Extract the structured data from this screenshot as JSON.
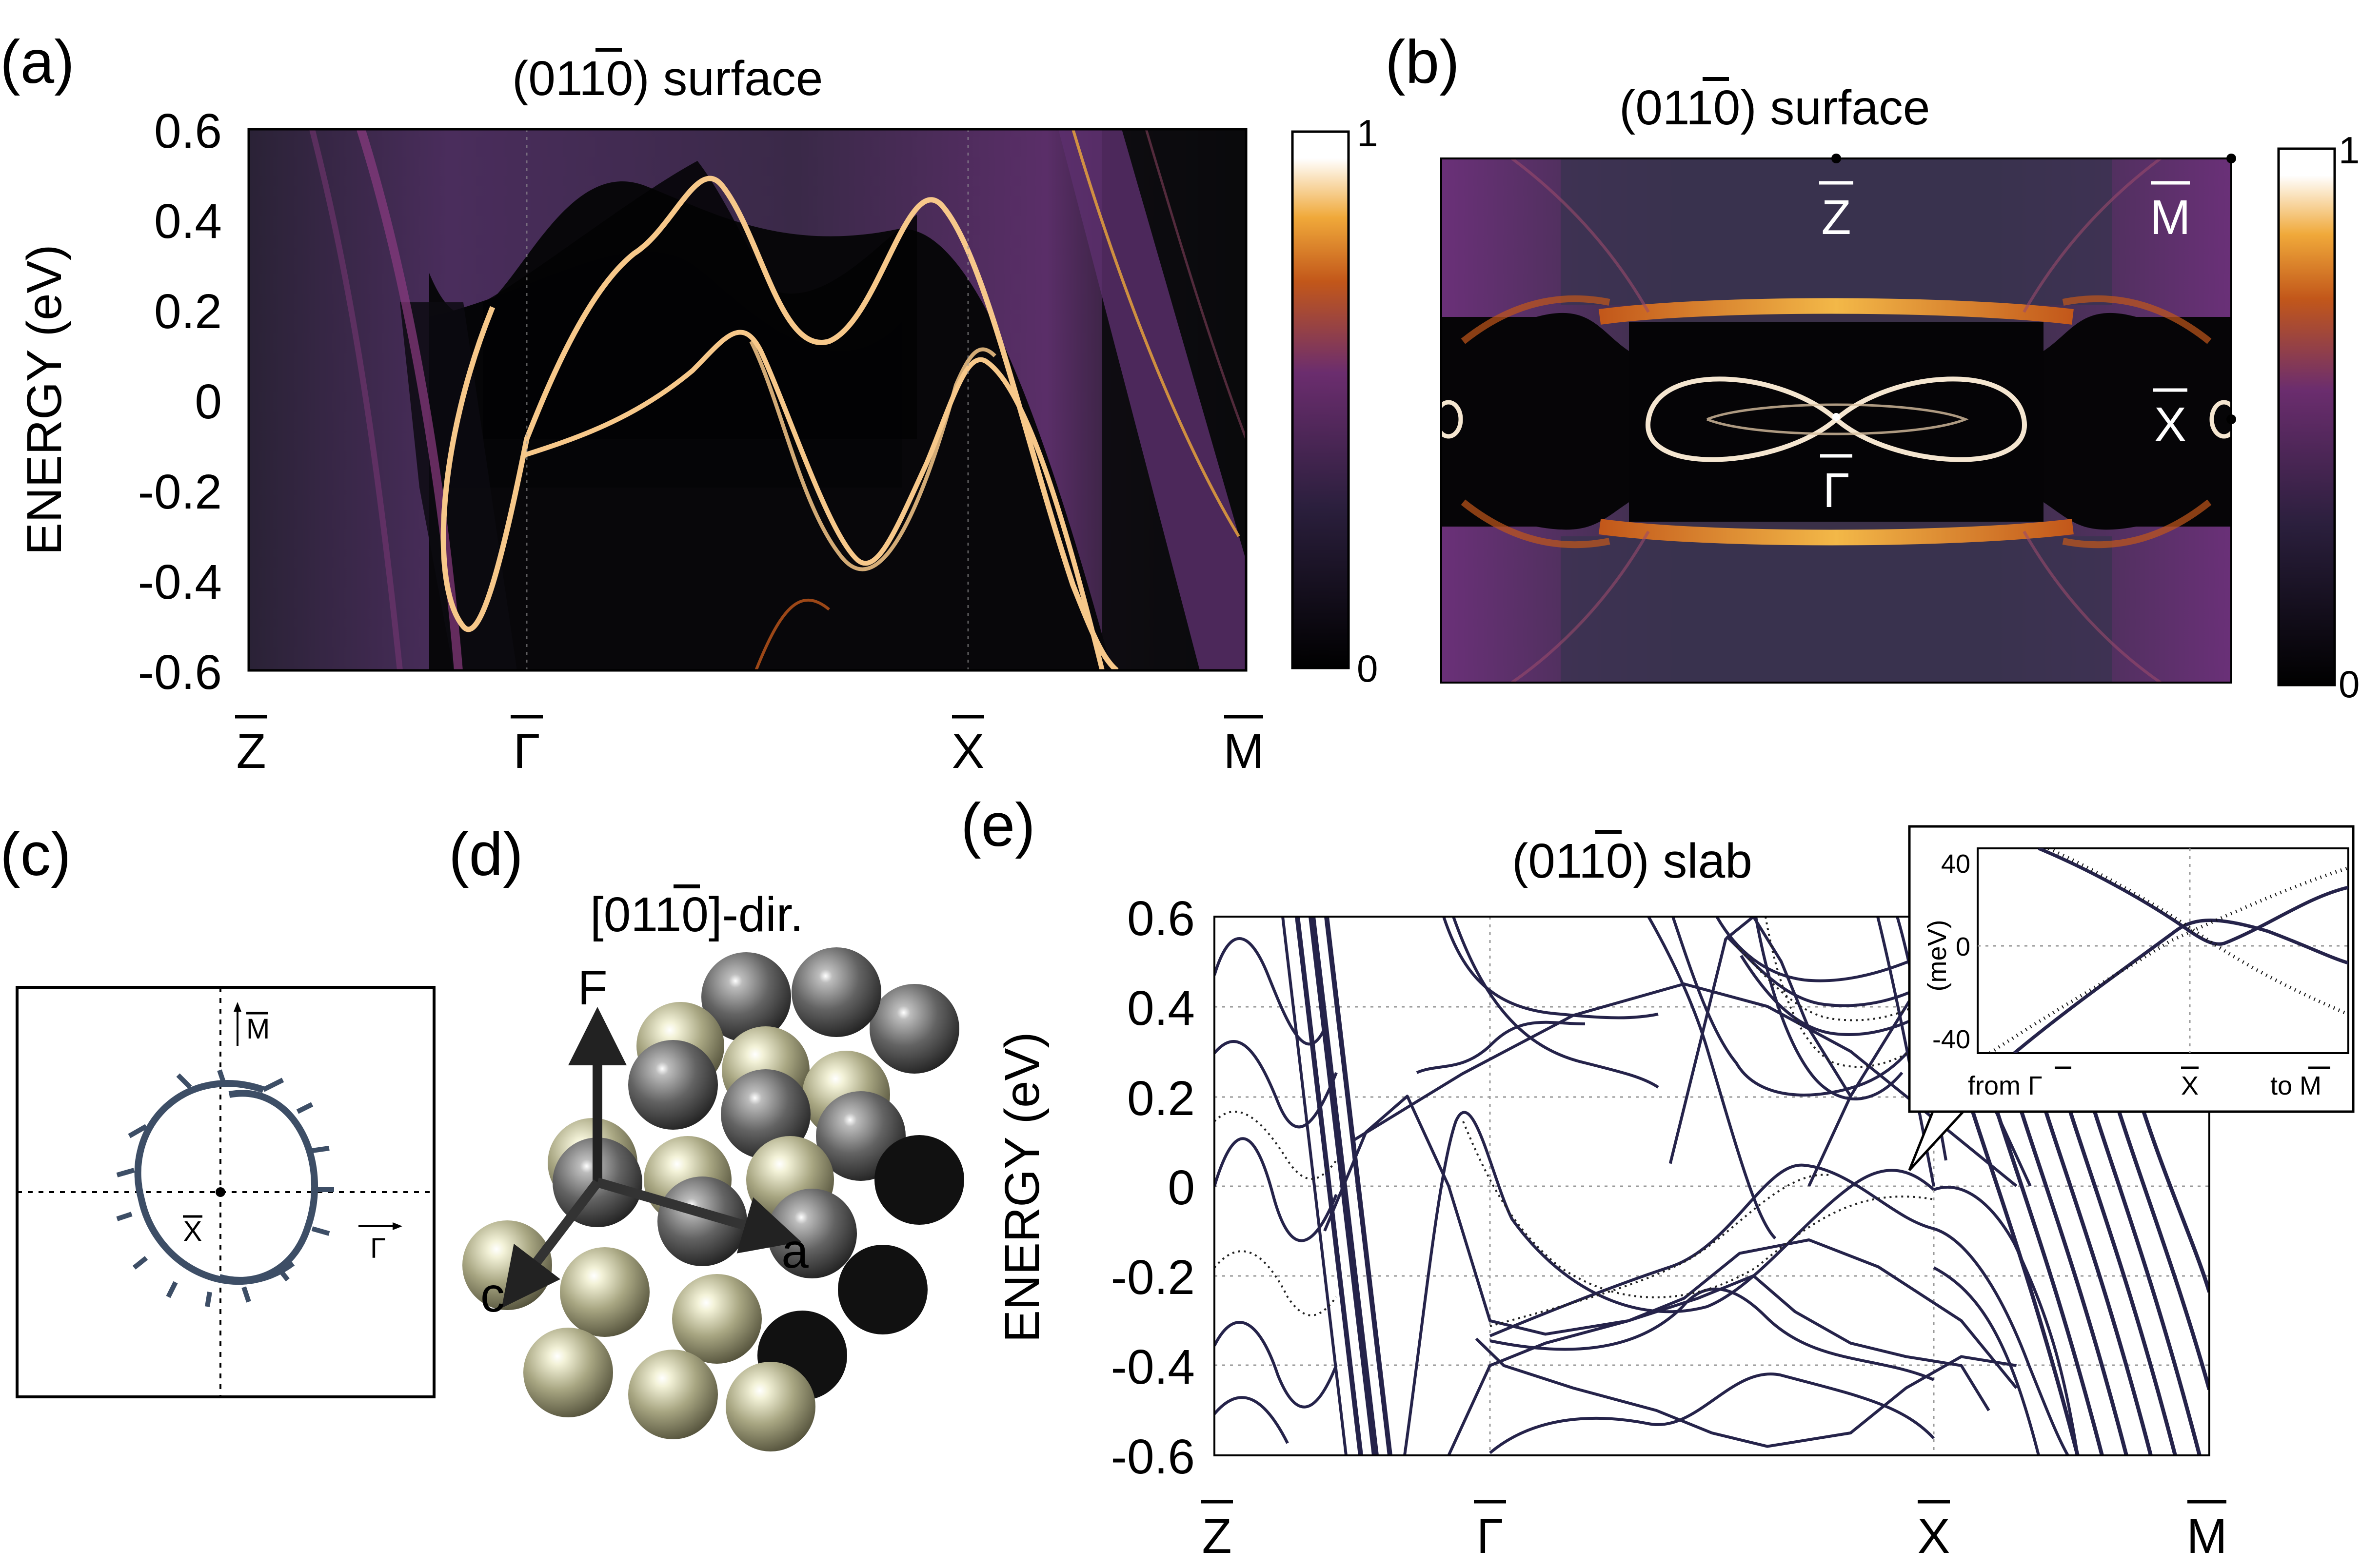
{
  "panels": {
    "a": {
      "letter": "(a)",
      "title_pre": "(01",
      "title_bar": "1",
      "title_post": "0) surface",
      "ylabel": "ENERGY (eV)",
      "yticks": [
        "0.6",
        "0.4",
        "0.2",
        "0",
        "-0.2",
        "-0.4",
        "-0.6"
      ],
      "kpoints": [
        "Z",
        "Γ",
        "X",
        "M"
      ],
      "colorbar": {
        "max": "1",
        "min": "0"
      }
    },
    "b": {
      "letter": "(b)",
      "title_pre": "(01",
      "title_bar": "1",
      "title_post": "0) surface",
      "kpoints": {
        "z": "Z",
        "m": "M",
        "x": "X",
        "g": "Γ"
      },
      "colorbar": {
        "max": "1",
        "min": "0"
      }
    },
    "c": {
      "letter": "(c)",
      "labels": {
        "m": "M",
        "x": "X",
        "g": "Γ"
      }
    },
    "d": {
      "letter": "(d)",
      "title_pre": "[01",
      "title_bar": "1",
      "title_post": "0]-dir.",
      "axes": {
        "f": "F",
        "a": "a",
        "c": "c"
      }
    },
    "e": {
      "letter": "(e)",
      "title_pre": "(01",
      "title_bar": "1",
      "title_post": "0) slab",
      "ylabel": "ENERGY (eV)",
      "yticks": [
        "0.6",
        "0.4",
        "0.2",
        "0",
        "-0.2",
        "-0.4",
        "-0.6"
      ],
      "kpoints": [
        "Z",
        "Γ",
        "X",
        "M"
      ],
      "inset": {
        "ylabel": "(meV)",
        "yticks": [
          "40",
          "0",
          "-40"
        ],
        "from": "from ",
        "from_pt": "Γ",
        "mid": "X",
        "to": "to ",
        "to_pt": "M"
      }
    }
  },
  "chart_data": [
    {
      "type": "heatmap",
      "panel": "a",
      "title": "(011̄0) surface",
      "ylabel": "ENERGY (eV)",
      "ylim": [
        -0.6,
        0.6
      ],
      "x_ticks": [
        "Z",
        "Γ",
        "X",
        "M"
      ],
      "colorbar": [
        0,
        1
      ],
      "colormap": [
        "#000000",
        "#2b1f3d",
        "#6b2d6e",
        "#c2571a",
        "#f0a93a",
        "#ffffff"
      ],
      "bands": [
        {
          "name": "",
          "x": [
            0.21,
            0.27,
            0.28,
            0.35,
            0.42,
            0.48,
            0.55,
            0.63,
            0.66,
            0.73,
            0.78,
            0.84
          ],
          "y": [
            0.2,
            -0.45,
            -0.45,
            -0.1,
            0.22,
            0.38,
            0.05,
            0.15,
            0.36,
            -0.2,
            -0.6,
            -0.6
          ]
        },
        {
          "name": "",
          "x": [
            0.28,
            0.31,
            0.38,
            0.46,
            0.52,
            0.58,
            0.62,
            0.66,
            0.7,
            0.76,
            0.82
          ],
          "y": [
            -0.12,
            -0.11,
            0.02,
            0.16,
            -0.07,
            -0.36,
            -0.34,
            -0.05,
            0.1,
            -0.35,
            -0.6
          ]
        },
        {
          "name": "",
          "x": [
            0.26,
            0.34,
            0.4,
            0.45,
            0.55,
            0.66,
            0.68,
            0.74
          ],
          "y": [
            -0.45,
            -0.27,
            0.02,
            0.12,
            -0.22,
            -0.38,
            -0.3,
            -0.05
          ]
        }
      ]
    },
    {
      "type": "heatmap",
      "panel": "b",
      "title": "(011̄0) surface",
      "colorbar": [
        0,
        1
      ],
      "colormap": [
        "#000000",
        "#2b1f3d",
        "#6b2d6e",
        "#c2571a",
        "#f0a93a",
        "#ffffff"
      ]
    },
    {
      "type": "line",
      "panel": "e",
      "title": "(011̄0) slab",
      "ylabel": "ENERGY (eV)",
      "ylim": [
        -0.6,
        0.6
      ],
      "x_ticks": [
        "Z",
        "Γ",
        "X",
        "M"
      ],
      "grid": true,
      "line_color": "#25234a",
      "bands": [
        {
          "x": [
            0.5,
            0.9,
            1.3,
            1.7,
            2.0,
            2.3,
            2.6,
            2.9
          ],
          "y": [
            0.1,
            0.25,
            0.38,
            0.45,
            0.4,
            0.3,
            0.15,
            0.0
          ]
        },
        {
          "x": [
            0.4,
            0.55,
            0.7,
            0.85,
            1.0,
            1.2,
            1.5,
            1.7,
            1.9,
            2.15,
            2.4,
            2.7,
            2.9
          ],
          "y": [
            -0.1,
            0.12,
            0.2,
            0.0,
            -0.3,
            -0.33,
            -0.3,
            -0.25,
            -0.15,
            -0.12,
            -0.18,
            -0.3,
            -0.45
          ]
        },
        {
          "x": [
            0.95,
            1.05,
            1.3,
            1.6,
            1.8,
            2.0,
            2.3,
            2.5,
            2.7,
            2.9
          ],
          "y": [
            -0.34,
            -0.4,
            -0.45,
            -0.5,
            -0.55,
            -0.58,
            -0.55,
            -0.45,
            -0.38,
            -0.4
          ]
        },
        {
          "x": [
            0.85,
            1.0,
            1.2,
            1.5,
            1.75,
            1.95,
            2.1,
            2.3,
            2.5,
            2.7,
            2.8
          ],
          "y": [
            -0.6,
            -0.4,
            -0.35,
            -0.3,
            -0.25,
            -0.2,
            -0.28,
            -0.35,
            -0.38,
            -0.4,
            -0.5
          ]
        },
        {
          "x": [
            1.65,
            1.75,
            1.85,
            1.95,
            2.05,
            2.15,
            2.3
          ],
          "y": [
            0.05,
            0.3,
            0.55,
            0.6,
            0.5,
            0.35,
            0.2
          ]
        },
        {
          "x": [
            2.15,
            2.3,
            2.45,
            2.6,
            2.7,
            2.8,
            2.95
          ],
          "y": [
            0.0,
            0.2,
            0.35,
            0.5,
            0.4,
            0.2,
            0.0
          ]
        }
      ],
      "inset": {
        "ylabel": "(meV)",
        "ylim": [
          -50,
          50
        ],
        "x_ticks": [
          "from Γ",
          "X",
          "to M"
        ]
      }
    }
  ]
}
